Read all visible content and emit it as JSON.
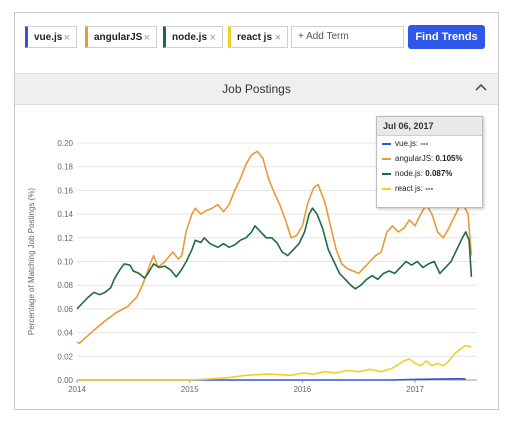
{
  "terms": [
    {
      "label": "vue.js",
      "color": "#3554d1",
      "remove": "×"
    },
    {
      "label": "angularJS",
      "color": "#e99a3a",
      "remove": "×"
    },
    {
      "label": "node.js",
      "color": "#1f6b3f",
      "remove": "×"
    },
    {
      "label": "react js",
      "color": "#f0cf2b",
      "remove": "×"
    }
  ],
  "add_term_label": "+ Add Term",
  "find_button": "Find Trends",
  "section_title": "Job Postings",
  "tooltip": {
    "date": "Jul 06, 2017",
    "rows": [
      {
        "name": "vue.js:",
        "value": "---",
        "color": "#3554d1"
      },
      {
        "name": "angularJS:",
        "value": "0.105%",
        "color": "#e99a3a"
      },
      {
        "name": "node.js:",
        "value": "0.087%",
        "color": "#1f6b3f"
      },
      {
        "name": "react js:",
        "value": "---",
        "color": "#f0cf2b"
      }
    ]
  },
  "chart_data": {
    "type": "line",
    "ylabel": "Percentage of Matching Job Postings (%)",
    "ylim": [
      0,
      0.2
    ],
    "xlim": [
      2014.0,
      2017.55
    ],
    "x_ticks": [
      2014,
      2015,
      2016,
      2017
    ],
    "y_ticks": [
      "0.00",
      "0.02",
      "0.04",
      "0.06",
      "0.08",
      "0.10",
      "0.12",
      "0.14",
      "0.16",
      "0.18",
      "0.20"
    ],
    "grid": true,
    "series": [
      {
        "name": "vue.js",
        "color": "#3554d1",
        "points": [
          [
            2014.0,
            0.0
          ],
          [
            2015.0,
            0.0
          ],
          [
            2016.0,
            0.0
          ],
          [
            2016.8,
            0.0
          ],
          [
            2017.0,
            0.0005
          ],
          [
            2017.2,
            0.0008
          ],
          [
            2017.35,
            0.001
          ],
          [
            2017.4,
            0.001
          ],
          [
            2017.45,
            0.0008
          ]
        ]
      },
      {
        "name": "angularJS",
        "color": "#e99a3a",
        "points": [
          [
            2014.0,
            0.032
          ],
          [
            2014.02,
            0.031
          ],
          [
            2014.08,
            0.036
          ],
          [
            2014.15,
            0.042
          ],
          [
            2014.25,
            0.05
          ],
          [
            2014.35,
            0.057
          ],
          [
            2014.45,
            0.062
          ],
          [
            2014.53,
            0.07
          ],
          [
            2014.58,
            0.08
          ],
          [
            2014.62,
            0.09
          ],
          [
            2014.65,
            0.098
          ],
          [
            2014.68,
            0.105
          ],
          [
            2014.7,
            0.1
          ],
          [
            2014.72,
            0.095
          ],
          [
            2014.78,
            0.1
          ],
          [
            2014.85,
            0.108
          ],
          [
            2014.9,
            0.102
          ],
          [
            2014.93,
            0.105
          ],
          [
            2014.97,
            0.126
          ],
          [
            2015.02,
            0.14
          ],
          [
            2015.05,
            0.145
          ],
          [
            2015.1,
            0.14
          ],
          [
            2015.15,
            0.143
          ],
          [
            2015.2,
            0.145
          ],
          [
            2015.25,
            0.148
          ],
          [
            2015.3,
            0.142
          ],
          [
            2015.35,
            0.148
          ],
          [
            2015.4,
            0.16
          ],
          [
            2015.45,
            0.17
          ],
          [
            2015.5,
            0.182
          ],
          [
            2015.55,
            0.19
          ],
          [
            2015.6,
            0.193
          ],
          [
            2015.65,
            0.187
          ],
          [
            2015.7,
            0.17
          ],
          [
            2015.75,
            0.158
          ],
          [
            2015.8,
            0.148
          ],
          [
            2015.85,
            0.135
          ],
          [
            2015.9,
            0.12
          ],
          [
            2015.95,
            0.122
          ],
          [
            2016.0,
            0.13
          ],
          [
            2016.05,
            0.15
          ],
          [
            2016.1,
            0.162
          ],
          [
            2016.14,
            0.165
          ],
          [
            2016.2,
            0.15
          ],
          [
            2016.25,
            0.13
          ],
          [
            2016.3,
            0.11
          ],
          [
            2016.35,
            0.098
          ],
          [
            2016.4,
            0.094
          ],
          [
            2016.45,
            0.092
          ],
          [
            2016.5,
            0.09
          ],
          [
            2016.55,
            0.095
          ],
          [
            2016.6,
            0.1
          ],
          [
            2016.65,
            0.105
          ],
          [
            2016.7,
            0.108
          ],
          [
            2016.75,
            0.125
          ],
          [
            2016.8,
            0.13
          ],
          [
            2016.85,
            0.125
          ],
          [
            2016.9,
            0.128
          ],
          [
            2016.95,
            0.135
          ],
          [
            2017.0,
            0.13
          ],
          [
            2017.05,
            0.14
          ],
          [
            2017.1,
            0.148
          ],
          [
            2017.15,
            0.14
          ],
          [
            2017.2,
            0.125
          ],
          [
            2017.25,
            0.12
          ],
          [
            2017.3,
            0.128
          ],
          [
            2017.35,
            0.138
          ],
          [
            2017.4,
            0.148
          ],
          [
            2017.43,
            0.148
          ],
          [
            2017.47,
            0.14
          ],
          [
            2017.5,
            0.105
          ]
        ]
      },
      {
        "name": "node.js",
        "color": "#1f6b3f",
        "points": [
          [
            2014.0,
            0.06
          ],
          [
            2014.05,
            0.065
          ],
          [
            2014.1,
            0.07
          ],
          [
            2014.15,
            0.074
          ],
          [
            2014.2,
            0.072
          ],
          [
            2014.25,
            0.074
          ],
          [
            2014.3,
            0.078
          ],
          [
            2014.33,
            0.085
          ],
          [
            2014.38,
            0.093
          ],
          [
            2014.42,
            0.098
          ],
          [
            2014.47,
            0.097
          ],
          [
            2014.5,
            0.092
          ],
          [
            2014.55,
            0.09
          ],
          [
            2014.6,
            0.086
          ],
          [
            2014.63,
            0.09
          ],
          [
            2014.68,
            0.098
          ],
          [
            2014.73,
            0.095
          ],
          [
            2014.78,
            0.096
          ],
          [
            2014.83,
            0.093
          ],
          [
            2014.88,
            0.087
          ],
          [
            2014.92,
            0.092
          ],
          [
            2014.97,
            0.1
          ],
          [
            2015.02,
            0.11
          ],
          [
            2015.05,
            0.118
          ],
          [
            2015.1,
            0.116
          ],
          [
            2015.13,
            0.12
          ],
          [
            2015.18,
            0.115
          ],
          [
            2015.25,
            0.112
          ],
          [
            2015.3,
            0.115
          ],
          [
            2015.35,
            0.112
          ],
          [
            2015.4,
            0.114
          ],
          [
            2015.45,
            0.118
          ],
          [
            2015.5,
            0.12
          ],
          [
            2015.55,
            0.125
          ],
          [
            2015.58,
            0.13
          ],
          [
            2015.63,
            0.125
          ],
          [
            2015.68,
            0.12
          ],
          [
            2015.73,
            0.12
          ],
          [
            2015.78,
            0.115
          ],
          [
            2015.82,
            0.108
          ],
          [
            2015.87,
            0.105
          ],
          [
            2015.92,
            0.11
          ],
          [
            2015.97,
            0.115
          ],
          [
            2016.02,
            0.125
          ],
          [
            2016.06,
            0.14
          ],
          [
            2016.09,
            0.145
          ],
          [
            2016.13,
            0.14
          ],
          [
            2016.18,
            0.128
          ],
          [
            2016.23,
            0.11
          ],
          [
            2016.28,
            0.1
          ],
          [
            2016.33,
            0.09
          ],
          [
            2016.38,
            0.085
          ],
          [
            2016.43,
            0.08
          ],
          [
            2016.47,
            0.077
          ],
          [
            2016.52,
            0.08
          ],
          [
            2016.57,
            0.085
          ],
          [
            2016.62,
            0.088
          ],
          [
            2016.67,
            0.085
          ],
          [
            2016.72,
            0.09
          ],
          [
            2016.77,
            0.092
          ],
          [
            2016.82,
            0.09
          ],
          [
            2016.87,
            0.095
          ],
          [
            2016.92,
            0.1
          ],
          [
            2016.97,
            0.097
          ],
          [
            2017.02,
            0.1
          ],
          [
            2017.07,
            0.095
          ],
          [
            2017.12,
            0.098
          ],
          [
            2017.17,
            0.1
          ],
          [
            2017.22,
            0.09
          ],
          [
            2017.27,
            0.095
          ],
          [
            2017.32,
            0.1
          ],
          [
            2017.37,
            0.11
          ],
          [
            2017.42,
            0.12
          ],
          [
            2017.45,
            0.125
          ],
          [
            2017.48,
            0.118
          ],
          [
            2017.5,
            0.087
          ]
        ]
      },
      {
        "name": "react js",
        "color": "#f0cf2b",
        "points": [
          [
            2014.0,
            0.0
          ],
          [
            2014.5,
            0.0
          ],
          [
            2015.0,
            0.0
          ],
          [
            2015.2,
            0.001
          ],
          [
            2015.35,
            0.002
          ],
          [
            2015.5,
            0.004
          ],
          [
            2015.7,
            0.005
          ],
          [
            2015.9,
            0.004
          ],
          [
            2016.0,
            0.006
          ],
          [
            2016.1,
            0.005
          ],
          [
            2016.2,
            0.007
          ],
          [
            2016.3,
            0.006
          ],
          [
            2016.4,
            0.008
          ],
          [
            2016.5,
            0.007
          ],
          [
            2016.6,
            0.009
          ],
          [
            2016.7,
            0.007
          ],
          [
            2016.8,
            0.01
          ],
          [
            2016.85,
            0.013
          ],
          [
            2016.9,
            0.016
          ],
          [
            2016.95,
            0.018
          ],
          [
            2017.0,
            0.014
          ],
          [
            2017.05,
            0.012
          ],
          [
            2017.1,
            0.016
          ],
          [
            2017.15,
            0.012
          ],
          [
            2017.2,
            0.014
          ],
          [
            2017.25,
            0.012
          ],
          [
            2017.3,
            0.016
          ],
          [
            2017.35,
            0.022
          ],
          [
            2017.4,
            0.026
          ],
          [
            2017.45,
            0.029
          ],
          [
            2017.5,
            0.028
          ]
        ]
      }
    ]
  }
}
